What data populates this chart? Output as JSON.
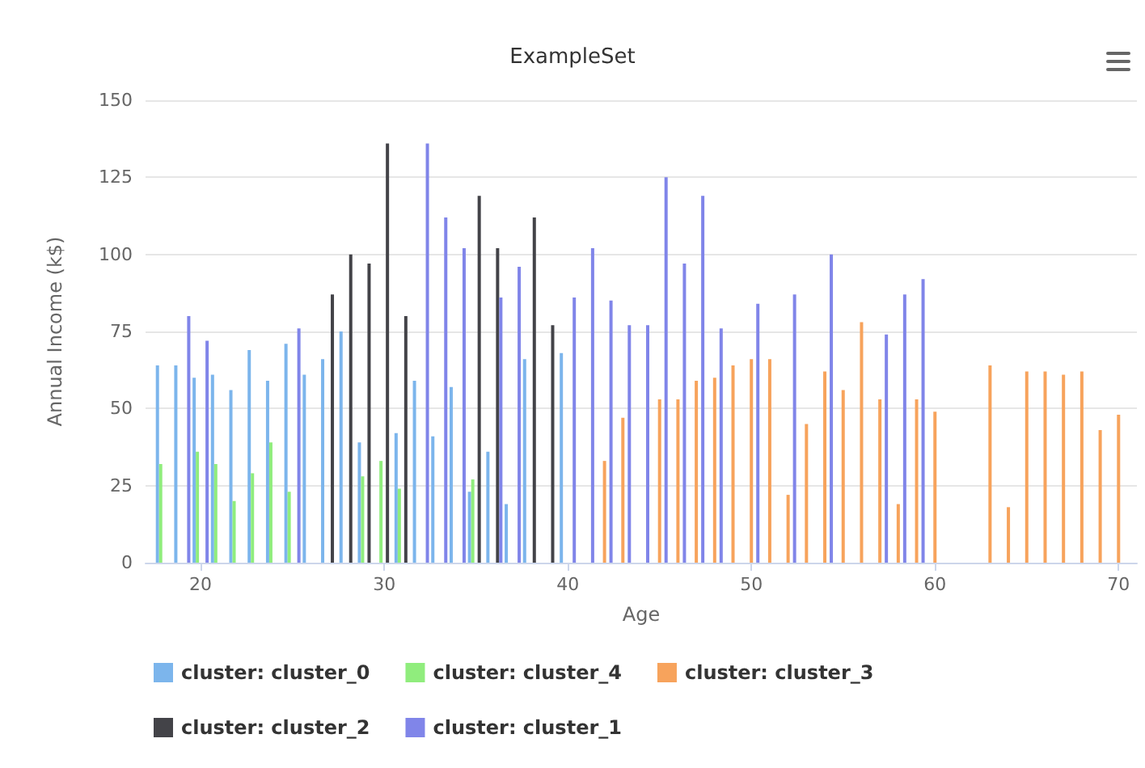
{
  "chart_data": {
    "type": "bar",
    "title": "ExampleSet",
    "xlabel": "Age",
    "ylabel": "Annual Income (k$)",
    "xlim": [
      17,
      71
    ],
    "xticks": [
      20,
      30,
      40,
      50,
      60,
      70
    ],
    "ylim": [
      0,
      150
    ],
    "yticks": [
      0,
      25,
      50,
      75,
      100,
      125,
      150
    ],
    "grid": "y",
    "legend": "bottom left",
    "series": [
      {
        "name": "cluster: cluster_0",
        "color": "#7cb5ec",
        "x": [
          18,
          19,
          20,
          21,
          22,
          23,
          24,
          25,
          26,
          27,
          28,
          29,
          31,
          32,
          33,
          34,
          35,
          36,
          37,
          38,
          40
        ],
        "values": [
          64,
          64,
          60,
          61,
          56,
          69,
          59,
          71,
          61,
          66,
          75,
          39,
          42,
          59,
          41,
          57,
          23,
          36,
          19,
          66,
          68
        ]
      },
      {
        "name": "cluster: cluster_4",
        "color": "#90ed7d",
        "x": [
          18,
          20,
          21,
          22,
          23,
          24,
          25,
          29,
          30,
          31,
          35
        ],
        "values": [
          32,
          36,
          32,
          20,
          29,
          39,
          23,
          28,
          33,
          24,
          27
        ]
      },
      {
        "name": "cluster: cluster_3",
        "color": "#f7a35c",
        "x": [
          42,
          43,
          45,
          46,
          47,
          48,
          49,
          50,
          51,
          52,
          53,
          54,
          55,
          56,
          57,
          58,
          59,
          60,
          63,
          64,
          65,
          66,
          67,
          68,
          69,
          70
        ],
        "values": [
          33,
          47,
          53,
          53,
          59,
          60,
          64,
          66,
          66,
          22,
          45,
          62,
          56,
          78,
          53,
          19,
          53,
          49,
          64,
          18,
          62,
          62,
          61,
          62,
          43,
          48
        ]
      },
      {
        "name": "cluster: cluster_2",
        "color": "#434348",
        "x": [
          27,
          28,
          29,
          30,
          31,
          35,
          36,
          38,
          39
        ],
        "values": [
          87,
          100,
          97,
          136,
          80,
          119,
          102,
          112,
          77
        ]
      },
      {
        "name": "cluster: cluster_1",
        "color": "#8085e9",
        "x": [
          19,
          20,
          25,
          32,
          33,
          34,
          36,
          37,
          40,
          41,
          42,
          43,
          44,
          45,
          46,
          47,
          48,
          50,
          52,
          54,
          57,
          58,
          59
        ],
        "values": [
          80,
          72,
          76,
          136,
          112,
          102,
          86,
          96,
          86,
          102,
          85,
          77,
          77,
          125,
          97,
          119,
          76,
          84,
          87,
          100,
          74,
          87,
          92
        ]
      }
    ]
  }
}
